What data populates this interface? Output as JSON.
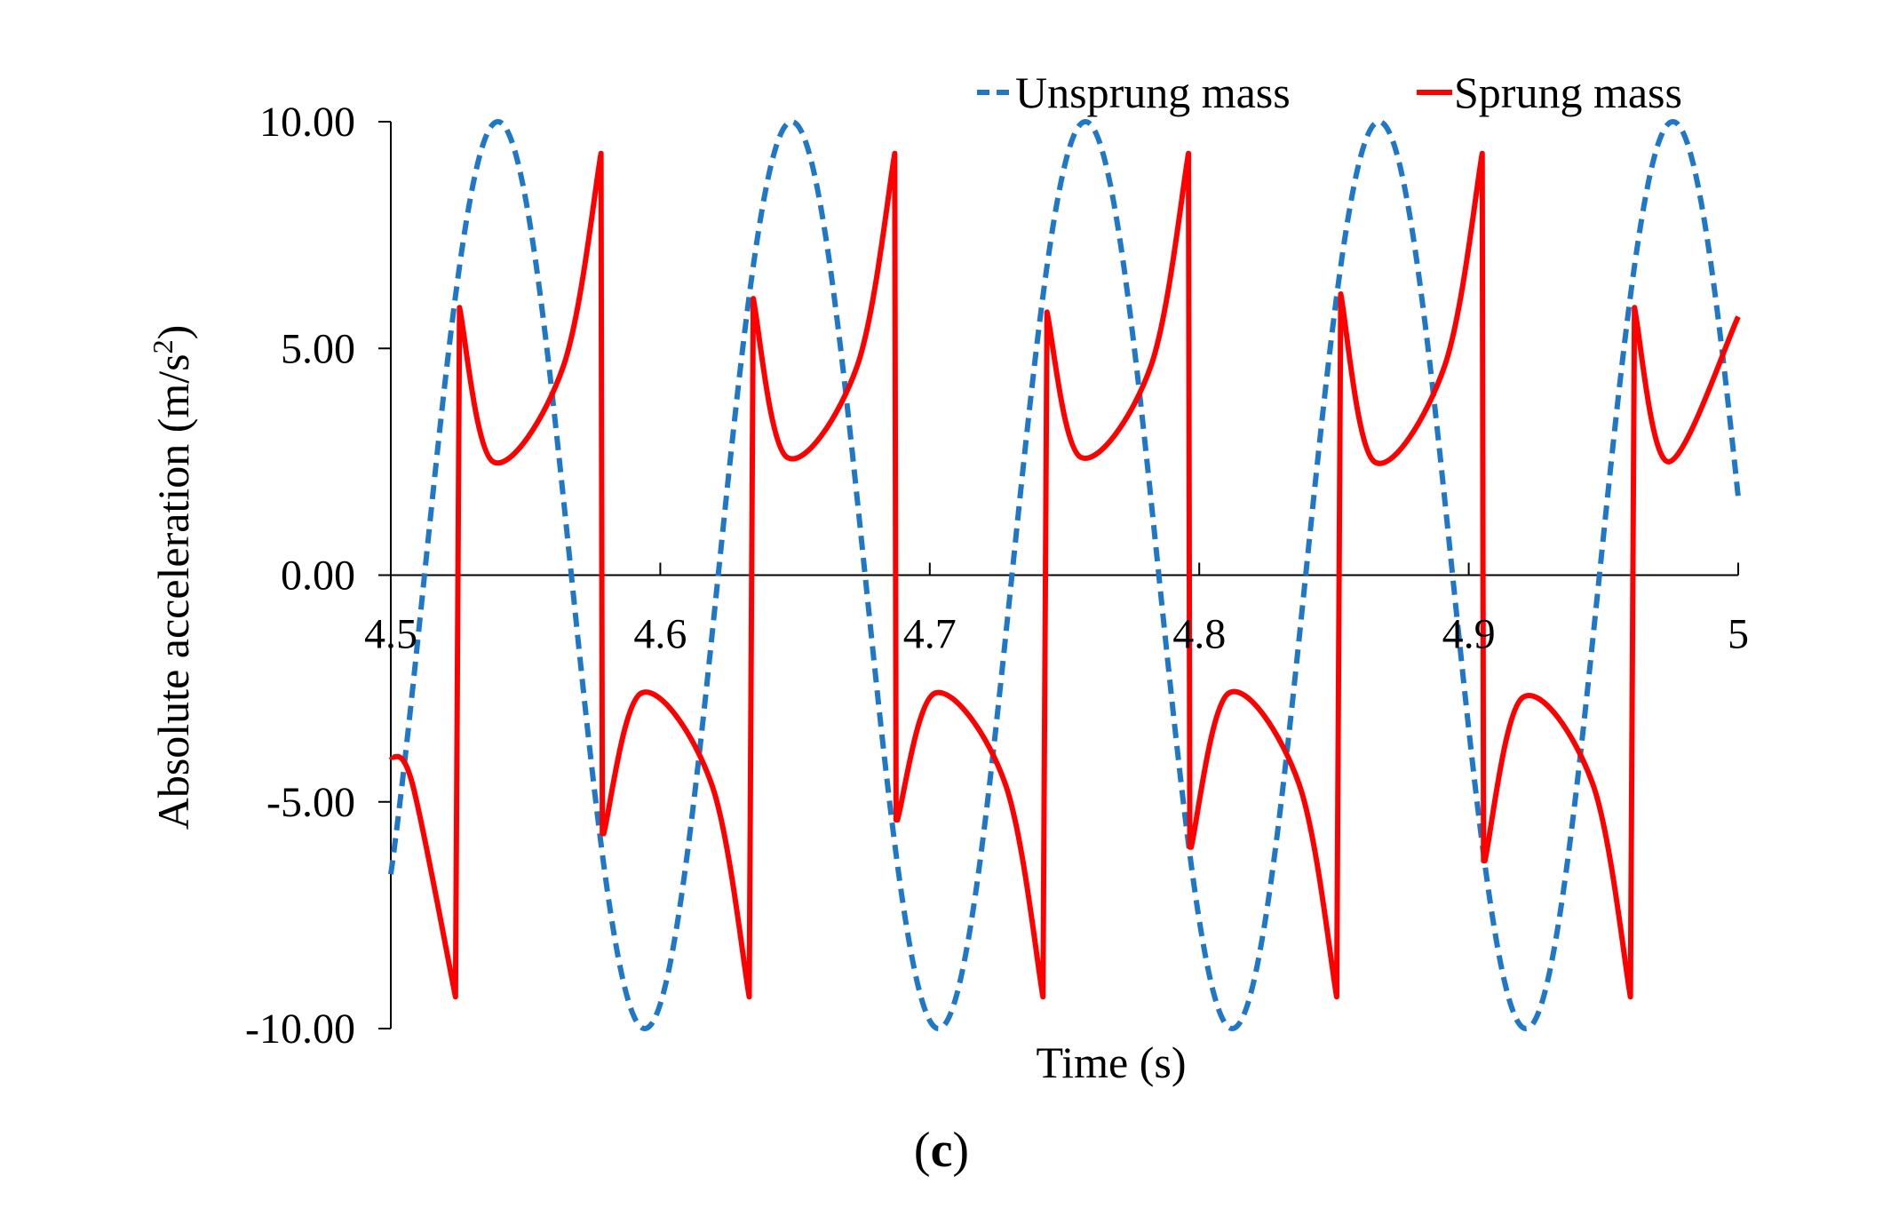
{
  "chart_data": {
    "type": "line",
    "title": "",
    "xlabel": "Time (s)",
    "ylabel": "Absolute acceleration (m/s",
    "ylabel_superscript": "2",
    "ylabel_suffix": ")",
    "xlim": [
      4.5,
      5.0
    ],
    "ylim": [
      -10,
      10
    ],
    "x_ticks": [
      4.5,
      4.6,
      4.7,
      4.8,
      4.9,
      5.0
    ],
    "x_tick_labels": [
      "4.5",
      "4.6",
      "4.7",
      "4.8",
      "4.9",
      "5"
    ],
    "y_ticks": [
      10,
      5,
      0,
      -5,
      -10
    ],
    "y_tick_labels": [
      "10.00",
      "5.00",
      "0.00",
      "-5.00",
      "-10.00"
    ],
    "grid": false,
    "legend_position": "top-right",
    "panel_label": "c",
    "panel_label_open": "(",
    "panel_label_close": ")",
    "series": [
      {
        "name": "Unsprung mass",
        "style": "dashed",
        "color": "#1f77c8",
        "amplitude": 10.0,
        "period_s": 0.109,
        "zero_crossing_s": 4.5125,
        "x": [
          4.5,
          4.54,
          4.595,
          4.649,
          4.704,
          4.758,
          4.813,
          4.867,
          4.922,
          4.976,
          5.0
        ],
        "y": [
          -7.6,
          10.0,
          -10.0,
          10.0,
          -10.0,
          10.0,
          -10.0,
          10.0,
          -10.0,
          10.0,
          1.8
        ]
      },
      {
        "name": "Sprung mass",
        "style": "solid",
        "color": "#ff0000",
        "period_s": 0.109,
        "x": [
          4.5,
          4.508,
          4.524,
          4.5255,
          4.538,
          4.564,
          4.578,
          4.5785,
          4.579,
          4.593,
          4.619,
          4.633,
          4.6345,
          4.647,
          4.673,
          4.687,
          4.6875,
          4.688,
          4.702,
          4.728,
          4.742,
          4.7435,
          4.756,
          4.782,
          4.796,
          4.7965,
          4.797,
          4.811,
          4.837,
          4.851,
          4.8525,
          4.865,
          4.891,
          4.905,
          4.9055,
          4.906,
          4.92,
          4.946,
          4.96,
          4.9615,
          4.974,
          5.0
        ],
        "y": [
          -4.0,
          -4.6,
          -9.3,
          5.9,
          2.5,
          4.6,
          9.3,
          -5.7,
          -5.7,
          -2.6,
          -4.6,
          -9.3,
          6.1,
          2.6,
          4.6,
          9.3,
          -5.4,
          -5.4,
          -2.6,
          -4.6,
          -9.3,
          5.8,
          2.6,
          4.6,
          9.3,
          -6.0,
          -6.0,
          -2.6,
          -4.6,
          -9.3,
          6.2,
          2.5,
          4.6,
          9.3,
          -6.3,
          -6.3,
          -2.7,
          -4.6,
          -9.3,
          5.9,
          2.5,
          5.7
        ]
      }
    ]
  }
}
